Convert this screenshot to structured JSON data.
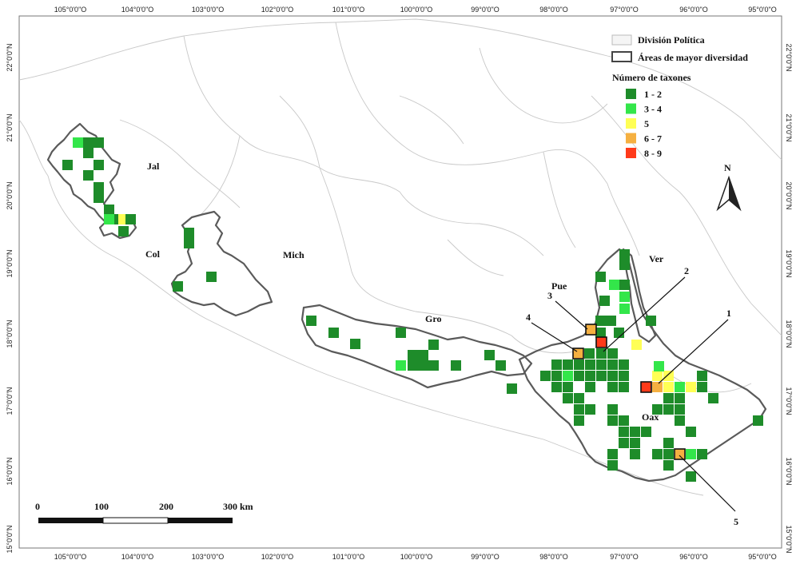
{
  "axes": {
    "top_ticks": [
      "105°0'0\"O",
      "104°0'0\"O",
      "103°0'0\"O",
      "102°0'0\"O",
      "101°0'0\"O",
      "100°0'0\"O",
      "99°0'0\"O",
      "98°0'0\"O",
      "97°0'0\"O",
      "96°0'0\"O",
      "95°0'0\"O"
    ],
    "bottom_ticks": [
      "105°0'0\"O",
      "104°0'0\"O",
      "103°0'0\"O",
      "102°0'0\"O",
      "101°0'0\"O",
      "100°0'0\"O",
      "99°0'0\"O",
      "98°0'0\"O",
      "97°0'0\"O",
      "96°0'0\"O",
      "95°0'0\"O"
    ],
    "lat_ticks": [
      "22°0'0\"N",
      "21°0'0\"N",
      "20°0'0\"N",
      "19°0'0\"N",
      "18°0'0\"N",
      "17°0'0\"N",
      "16°0'0\"N",
      "15°0'0\"N"
    ]
  },
  "states": [
    "Jal",
    "Col",
    "Mich",
    "Gro",
    "Pue",
    "Ver",
    "Oax"
  ],
  "sites": [
    "1",
    "2",
    "3",
    "4",
    "5"
  ],
  "legend": {
    "political": "División Política",
    "diversity": "Áreas de mayor diversidad",
    "taxa_title": "Número de taxones",
    "classes": [
      {
        "label": "1 - 2",
        "color": "#1e8c2a"
      },
      {
        "label": "3 - 4",
        "color": "#33e64a"
      },
      {
        "label": "5",
        "color": "#ffff55"
      },
      {
        "label": "6 - 7",
        "color": "#f5b041"
      },
      {
        "label": "8 - 9",
        "color": "#ff3a1a"
      }
    ]
  },
  "north_label": "N",
  "scale_labels": [
    "0",
    "100",
    "200",
    "300 km"
  ]
}
